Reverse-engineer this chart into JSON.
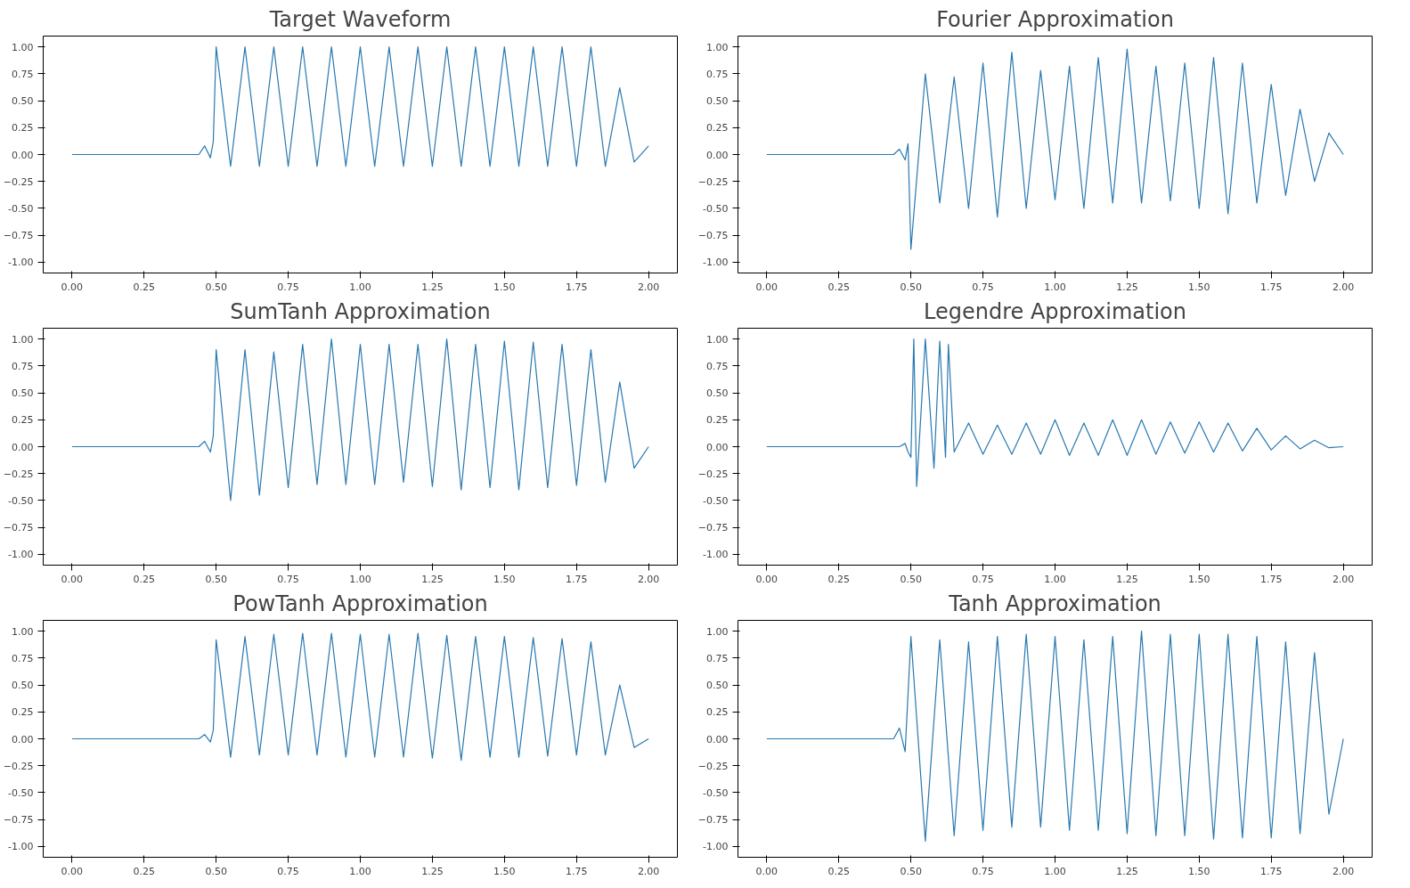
{
  "chart_data": [
    {
      "type": "line",
      "title": "Target Waveform",
      "xlim": [
        -0.1,
        2.1
      ],
      "ylim": [
        -1.1,
        1.1
      ],
      "xticks": [
        {
          "value": 0,
          "label": "0.00"
        },
        0.25,
        {
          "value": 0.5,
          "label": "0.50"
        },
        0.75,
        {
          "value": 1,
          "label": "1.00"
        },
        1.25,
        {
          "value": 1.5,
          "label": "1.50"
        },
        1.75,
        {
          "value": 2,
          "label": "2.00"
        }
      ],
      "yticks": [
        {
          "value": -1,
          "label": "-1.00"
        },
        -0.75,
        {
          "value": -0.5,
          "label": "-0.50"
        },
        -0.25,
        {
          "value": 0,
          "label": "0.00"
        },
        0.25,
        {
          "value": 0.5,
          "label": "0.50"
        },
        0.75,
        {
          "value": 1,
          "label": "1.00"
        }
      ],
      "grid": false,
      "line_style": "solid",
      "series": [
        {
          "color": "#2878b0",
          "x": [
            0,
            0.44,
            0.46,
            0.48,
            0.49,
            0.5,
            0.55,
            0.6,
            0.65,
            0.7,
            0.75,
            0.8,
            0.85,
            0.9,
            0.95,
            1.0,
            1.05,
            1.1,
            1.15,
            1.2,
            1.25,
            1.3,
            1.35,
            1.4,
            1.45,
            1.5,
            1.55,
            1.6,
            1.65,
            1.7,
            1.75,
            1.8,
            1.85,
            1.9,
            1.95,
            2.0
          ],
          "values": [
            0,
            0,
            0.08,
            -0.03,
            0.12,
            1.0,
            -0.11,
            1.0,
            -0.11,
            1.0,
            -0.11,
            1.0,
            -0.11,
            1.0,
            -0.11,
            1.0,
            -0.11,
            1.0,
            -0.11,
            1.0,
            -0.11,
            1.0,
            -0.11,
            1.0,
            -0.11,
            1.0,
            -0.11,
            1.0,
            -0.11,
            1.0,
            -0.11,
            1.0,
            -0.11,
            0.62,
            -0.07,
            0.08
          ]
        }
      ]
    },
    {
      "type": "line",
      "title": "Fourier Approximation",
      "xlim": [
        -0.1,
        2.1
      ],
      "ylim": [
        -1.1,
        1.1
      ],
      "xticks": [
        {
          "value": 0,
          "label": "0.00"
        },
        0.25,
        {
          "value": 0.5,
          "label": "0.50"
        },
        0.75,
        {
          "value": 1,
          "label": "1.00"
        },
        1.25,
        {
          "value": 1.5,
          "label": "1.50"
        },
        1.75,
        {
          "value": 2,
          "label": "2.00"
        }
      ],
      "yticks": [
        {
          "value": -1,
          "label": "-1.00"
        },
        -0.75,
        {
          "value": -0.5,
          "label": "-0.50"
        },
        -0.25,
        {
          "value": 0,
          "label": "0.00"
        },
        0.25,
        {
          "value": 0.5,
          "label": "0.50"
        },
        0.75,
        {
          "value": 1,
          "label": "1.00"
        }
      ],
      "grid": false,
      "line_style": "solid",
      "series": [
        {
          "color": "#2878b0",
          "x": [
            0,
            0.44,
            0.46,
            0.48,
            0.49,
            0.5,
            0.55,
            0.6,
            0.65,
            0.7,
            0.75,
            0.8,
            0.85,
            0.9,
            0.95,
            1.0,
            1.05,
            1.1,
            1.15,
            1.2,
            1.25,
            1.3,
            1.35,
            1.4,
            1.45,
            1.5,
            1.55,
            1.6,
            1.65,
            1.7,
            1.75,
            1.8,
            1.85,
            1.9,
            1.95,
            2.0
          ],
          "values": [
            0,
            0,
            0.05,
            -0.05,
            0.1,
            -0.88,
            0.75,
            -0.45,
            0.72,
            -0.5,
            0.85,
            -0.58,
            0.95,
            -0.5,
            0.78,
            -0.42,
            0.82,
            -0.5,
            0.9,
            -0.45,
            0.98,
            -0.45,
            0.82,
            -0.43,
            0.85,
            -0.5,
            0.9,
            -0.55,
            0.85,
            -0.45,
            0.65,
            -0.38,
            0.42,
            -0.25,
            0.2,
            0.0
          ]
        }
      ]
    },
    {
      "type": "line",
      "title": "SumTanh Approximation",
      "xlim": [
        -0.1,
        2.1
      ],
      "ylim": [
        -1.1,
        1.1
      ],
      "xticks": [
        {
          "value": 0,
          "label": "0.00"
        },
        0.25,
        {
          "value": 0.5,
          "label": "0.50"
        },
        0.75,
        {
          "value": 1,
          "label": "1.00"
        },
        1.25,
        {
          "value": 1.5,
          "label": "1.50"
        },
        1.75,
        {
          "value": 2,
          "label": "2.00"
        }
      ],
      "yticks": [
        {
          "value": -1,
          "label": "-1.00"
        },
        -0.75,
        {
          "value": -0.5,
          "label": "-0.50"
        },
        -0.25,
        {
          "value": 0,
          "label": "0.00"
        },
        0.25,
        {
          "value": 0.5,
          "label": "0.50"
        },
        0.75,
        {
          "value": 1,
          "label": "1.00"
        }
      ],
      "grid": false,
      "line_style": "solid",
      "series": [
        {
          "color": "#2878b0",
          "x": [
            0,
            0.44,
            0.46,
            0.48,
            0.49,
            0.5,
            0.55,
            0.6,
            0.65,
            0.7,
            0.75,
            0.8,
            0.85,
            0.9,
            0.95,
            1.0,
            1.05,
            1.1,
            1.15,
            1.2,
            1.25,
            1.3,
            1.35,
            1.4,
            1.45,
            1.5,
            1.55,
            1.6,
            1.65,
            1.7,
            1.75,
            1.8,
            1.85,
            1.9,
            1.95,
            2.0
          ],
          "values": [
            0,
            0,
            0.05,
            -0.05,
            0.1,
            0.9,
            -0.5,
            0.9,
            -0.45,
            0.88,
            -0.38,
            0.95,
            -0.35,
            1.0,
            -0.35,
            0.95,
            -0.35,
            0.95,
            -0.33,
            0.95,
            -0.37,
            1.0,
            -0.4,
            0.95,
            -0.38,
            0.98,
            -0.4,
            0.97,
            -0.38,
            0.95,
            -0.36,
            0.9,
            -0.33,
            0.6,
            -0.2,
            0.0
          ]
        }
      ]
    },
    {
      "type": "line",
      "title": "Legendre Approximation",
      "xlim": [
        -0.1,
        2.1
      ],
      "ylim": [
        -1.1,
        1.1
      ],
      "xticks": [
        {
          "value": 0,
          "label": "0.00"
        },
        0.25,
        {
          "value": 0.5,
          "label": "0.50"
        },
        0.75,
        {
          "value": 1,
          "label": "1.00"
        },
        1.25,
        {
          "value": 1.5,
          "label": "1.50"
        },
        1.75,
        {
          "value": 2,
          "label": "2.00"
        }
      ],
      "yticks": [
        {
          "value": -1,
          "label": "-1.00"
        },
        -0.75,
        {
          "value": -0.5,
          "label": "-0.50"
        },
        -0.25,
        {
          "value": 0,
          "label": "0.00"
        },
        0.25,
        {
          "value": 0.5,
          "label": "0.50"
        },
        0.75,
        {
          "value": 1,
          "label": "1.00"
        }
      ],
      "grid": false,
      "line_style": "solid",
      "series": [
        {
          "color": "#2878b0",
          "x": [
            0,
            0.46,
            0.48,
            0.49,
            0.5,
            0.51,
            0.52,
            0.55,
            0.58,
            0.6,
            0.62,
            0.63,
            0.65,
            0.7,
            0.75,
            0.8,
            0.85,
            0.9,
            0.95,
            1.0,
            1.05,
            1.1,
            1.15,
            1.2,
            1.25,
            1.3,
            1.35,
            1.4,
            1.45,
            1.5,
            1.55,
            1.6,
            1.65,
            1.7,
            1.75,
            1.8,
            1.85,
            1.9,
            1.95,
            2.0
          ],
          "values": [
            0,
            0,
            0.03,
            -0.05,
            -0.1,
            1.0,
            -0.37,
            1.0,
            -0.2,
            0.98,
            -0.1,
            0.95,
            -0.05,
            0.22,
            -0.07,
            0.2,
            -0.07,
            0.22,
            -0.07,
            0.25,
            -0.08,
            0.22,
            -0.08,
            0.25,
            -0.08,
            0.25,
            -0.07,
            0.23,
            -0.06,
            0.23,
            -0.05,
            0.22,
            -0.04,
            0.17,
            -0.03,
            0.1,
            -0.02,
            0.06,
            -0.01,
            0.0
          ]
        }
      ]
    },
    {
      "type": "line",
      "title": "PowTanh Approximation",
      "xlim": [
        -0.1,
        2.1
      ],
      "ylim": [
        -1.1,
        1.1
      ],
      "xticks": [
        {
          "value": 0,
          "label": "0.00"
        },
        0.25,
        {
          "value": 0.5,
          "label": "0.50"
        },
        0.75,
        {
          "value": 1,
          "label": "1.00"
        },
        1.25,
        {
          "value": 1.5,
          "label": "1.50"
        },
        1.75,
        {
          "value": 2,
          "label": "2.00"
        }
      ],
      "yticks": [
        {
          "value": -1,
          "label": "-1.00"
        },
        -0.75,
        {
          "value": -0.5,
          "label": "-0.50"
        },
        -0.25,
        {
          "value": 0,
          "label": "0.00"
        },
        0.25,
        {
          "value": 0.5,
          "label": "0.50"
        },
        0.75,
        {
          "value": 1,
          "label": "1.00"
        }
      ],
      "grid": false,
      "line_style": "solid",
      "series": [
        {
          "color": "#2878b0",
          "x": [
            0,
            0.44,
            0.46,
            0.48,
            0.49,
            0.5,
            0.55,
            0.6,
            0.65,
            0.7,
            0.75,
            0.8,
            0.85,
            0.9,
            0.95,
            1.0,
            1.05,
            1.1,
            1.15,
            1.2,
            1.25,
            1.3,
            1.35,
            1.4,
            1.45,
            1.5,
            1.55,
            1.6,
            1.65,
            1.7,
            1.75,
            1.8,
            1.85,
            1.9,
            1.95,
            2.0
          ],
          "values": [
            0,
            0,
            0.04,
            -0.03,
            0.08,
            0.92,
            -0.17,
            0.95,
            -0.15,
            0.97,
            -0.15,
            0.98,
            -0.15,
            0.98,
            -0.17,
            0.97,
            -0.17,
            0.97,
            -0.17,
            0.98,
            -0.18,
            0.96,
            -0.2,
            0.95,
            -0.17,
            0.95,
            -0.17,
            0.94,
            -0.16,
            0.93,
            -0.15,
            0.9,
            -0.15,
            0.5,
            -0.08,
            0.0
          ]
        }
      ]
    },
    {
      "type": "line",
      "title": "Tanh Approximation",
      "xlim": [
        -0.1,
        2.1
      ],
      "ylim": [
        -1.1,
        1.1
      ],
      "xticks": [
        {
          "value": 0,
          "label": "0.00"
        },
        0.25,
        {
          "value": 0.5,
          "label": "0.50"
        },
        0.75,
        {
          "value": 1,
          "label": "1.00"
        },
        1.25,
        {
          "value": 1.5,
          "label": "1.50"
        },
        1.75,
        {
          "value": 2,
          "label": "2.00"
        }
      ],
      "yticks": [
        {
          "value": -1,
          "label": "-1.00"
        },
        -0.75,
        {
          "value": -0.5,
          "label": "-0.50"
        },
        -0.25,
        {
          "value": 0,
          "label": "0.00"
        },
        0.25,
        {
          "value": 0.5,
          "label": "0.50"
        },
        0.75,
        {
          "value": 1,
          "label": "1.00"
        }
      ],
      "grid": false,
      "line_style": "solid",
      "series": [
        {
          "color": "#2878b0",
          "x": [
            0,
            0.44,
            0.46,
            0.48,
            0.5,
            0.55,
            0.6,
            0.65,
            0.7,
            0.75,
            0.8,
            0.85,
            0.9,
            0.95,
            1.0,
            1.05,
            1.1,
            1.15,
            1.2,
            1.25,
            1.3,
            1.35,
            1.4,
            1.45,
            1.5,
            1.55,
            1.6,
            1.65,
            1.7,
            1.75,
            1.8,
            1.85,
            1.9,
            1.95,
            2.0
          ],
          "values": [
            0,
            0,
            0.1,
            -0.12,
            0.95,
            -0.95,
            0.92,
            -0.9,
            0.9,
            -0.85,
            0.95,
            -0.82,
            0.97,
            -0.82,
            0.95,
            -0.85,
            0.92,
            -0.85,
            0.95,
            -0.88,
            1.0,
            -0.9,
            0.97,
            -0.9,
            0.97,
            -0.93,
            0.97,
            -0.92,
            0.95,
            -0.92,
            0.9,
            -0.88,
            0.8,
            -0.7,
            0.0
          ]
        }
      ]
    }
  ]
}
